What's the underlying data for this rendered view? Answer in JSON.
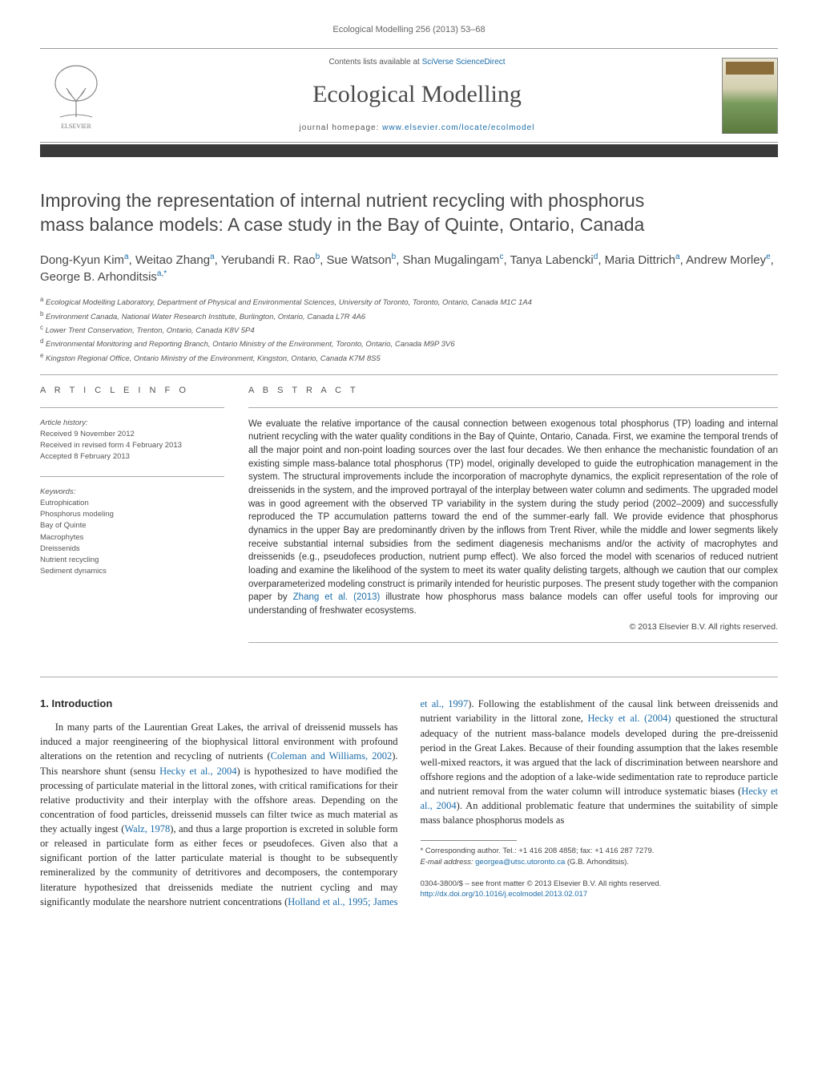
{
  "journal_ref": "Ecological Modelling 256 (2013) 53–68",
  "header": {
    "contents_prefix": "Contents lists available at ",
    "contents_link": "SciVerse ScienceDirect",
    "journal_title": "Ecological Modelling",
    "homepage_prefix": "journal homepage: ",
    "homepage_link": "www.elsevier.com/locate/ecolmodel"
  },
  "title_line1": "Improving the representation of internal nutrient recycling with phosphorus",
  "title_line2": "mass balance models: A case study in the Bay of Quinte, Ontario, Canada",
  "authors_html": "Dong-Kyun Kim<sup>a</sup>, Weitao Zhang<sup>a</sup>, Yerubandi R. Rao<sup>b</sup>, Sue Watson<sup>b</sup>, Shan Mugalingam<sup>c</sup>, Tanya Labencki<sup>d</sup>, Maria Dittrich<sup>a</sup>, Andrew Morley<sup>e</sup>, George B. Arhonditsis<sup>a,*</sup>",
  "affiliations": [
    {
      "sup": "a",
      "text": "Ecological Modelling Laboratory, Department of Physical and Environmental Sciences, University of Toronto, Toronto, Ontario, Canada M1C 1A4"
    },
    {
      "sup": "b",
      "text": "Environment Canada, National Water Research Institute, Burlington, Ontario, Canada L7R 4A6"
    },
    {
      "sup": "c",
      "text": "Lower Trent Conservation, Trenton, Ontario, Canada K8V 5P4"
    },
    {
      "sup": "d",
      "text": "Environmental Monitoring and Reporting Branch, Ontario Ministry of the Environment, Toronto, Ontario, Canada M9P 3V6"
    },
    {
      "sup": "e",
      "text": "Kingston Regional Office, Ontario Ministry of the Environment, Kingston, Ontario, Canada K7M 8S5"
    }
  ],
  "article_info_label": "A R T I C L E   I N F O",
  "abstract_label": "A B S T R A C T",
  "history": {
    "label": "Article history:",
    "received": "Received 9 November 2012",
    "revised": "Received in revised form 4 February 2013",
    "accepted": "Accepted 8 February 2013"
  },
  "keywords": {
    "label": "Keywords:",
    "items": [
      "Eutrophication",
      "Phosphorus modeling",
      "Bay of Quinte",
      "Macrophytes",
      "Dreissenids",
      "Nutrient recycling",
      "Sediment dynamics"
    ]
  },
  "abstract_parts": {
    "p0": "We evaluate the relative importance of the causal connection between exogenous total phosphorus (TP) loading and internal nutrient recycling with the water quality conditions in the Bay of Quinte, Ontario, Canada. First, we examine the temporal trends of all the major point and non-point loading sources over the last four decades. We then enhance the mechanistic foundation of an existing simple mass-balance total phosphorus (TP) model, originally developed to guide the eutrophication management in the system. The structural improvements include the incorporation of macrophyte dynamics, the explicit representation of the role of dreissenids in the system, and the improved portrayal of the interplay between water column and sediments. The upgraded model was in good agreement with the observed TP variability in the system during the study period (2002–2009) and successfully reproduced the TP accumulation patterns toward the end of the summer-early fall. We provide evidence that phosphorus dynamics in the upper Bay are predominantly driven by the inflows from Trent River, while the middle and lower segments likely receive substantial internal subsidies from the sediment diagenesis mechanisms and/or the activity of macrophytes and dreissenids (e.g., pseudofeces production, nutrient pump effect). We also forced the model with scenarios of reduced nutrient loading and examine the likelihood of the system to meet its water quality delisting targets, although we caution that our complex overparameterized modeling construct is primarily intended for heuristic purposes. The present study together with the companion paper by ",
    "link": "Zhang et al. (2013)",
    "p1": " illustrate how phosphorus mass balance models can offer useful tools for improving our understanding of freshwater ecosystems."
  },
  "copyright": "© 2013 Elsevier B.V. All rights reserved.",
  "intro": {
    "heading": "1.  Introduction",
    "para1_a": "In many parts of the Laurentian Great Lakes, the arrival of dreissenid mussels has induced a major reengineering of the biophysical littoral environment with profound alterations on the retention and recycling of nutrients (",
    "link1": "Coleman and Williams, 2002",
    "para1_b": "). This nearshore shunt (sensu ",
    "link2": "Hecky et al., 2004",
    "para1_c": ") is hypothesized to have modified the processing of particulate material in the littoral zones, with critical ramifications for their relative productivity and their interplay with the offshore areas. Depending on the concentration of food particles, dreissenid mussels can filter twice as much material as they actually ingest (",
    "link3": "Walz, 1978",
    "para1_d": "), and thus a large proportion is excreted in soluble form or released in particulate form ",
    "col2_a": "as either feces or pseudofeces. Given also that a significant portion of the latter particulate material is thought to be subsequently remineralized by the community of detritivores and decomposers, the contemporary literature hypothesized that dreissenids mediate the nutrient cycling and may significantly modulate the nearshore nutrient concentrations (",
    "link4": "Holland et al., 1995; James et al., 1997",
    "col2_b": "). Following the establishment of the causal link between dreissenids and nutrient variability in the littoral zone, ",
    "link5": "Hecky et al. (2004)",
    "col2_c": " questioned the structural adequacy of the nutrient mass-balance models developed during the pre-dreissenid period in the Great Lakes. Because of their founding assumption that the lakes resemble well-mixed reactors, it was argued that the lack of discrimination between nearshore and offshore regions and the adoption of a lake-wide sedimentation rate to reproduce particle and nutrient removal from the water column will introduce systematic biases (",
    "link6": "Hecky et al., 2004",
    "col2_d": "). An additional problematic feature that undermines the suitability of simple mass balance phosphorus models as"
  },
  "footnote": {
    "marker": "*",
    "text_a": " Corresponding author. Tel.: +1 416 208 4858; fax: +1 416 287 7279.",
    "email_label": "E-mail address: ",
    "email": "georgea@utsc.utoronto.ca",
    "email_tail": " (G.B. Arhonditsis)."
  },
  "footer": {
    "line1": "0304-3800/$ – see front matter © 2013 Elsevier B.V. All rights reserved.",
    "doi": "http://dx.doi.org/10.1016/j.ecolmodel.2013.02.017"
  },
  "colors": {
    "link": "#1b6ca8",
    "text": "#333333",
    "muted": "#555555",
    "darkbar": "#3a3a3a"
  }
}
